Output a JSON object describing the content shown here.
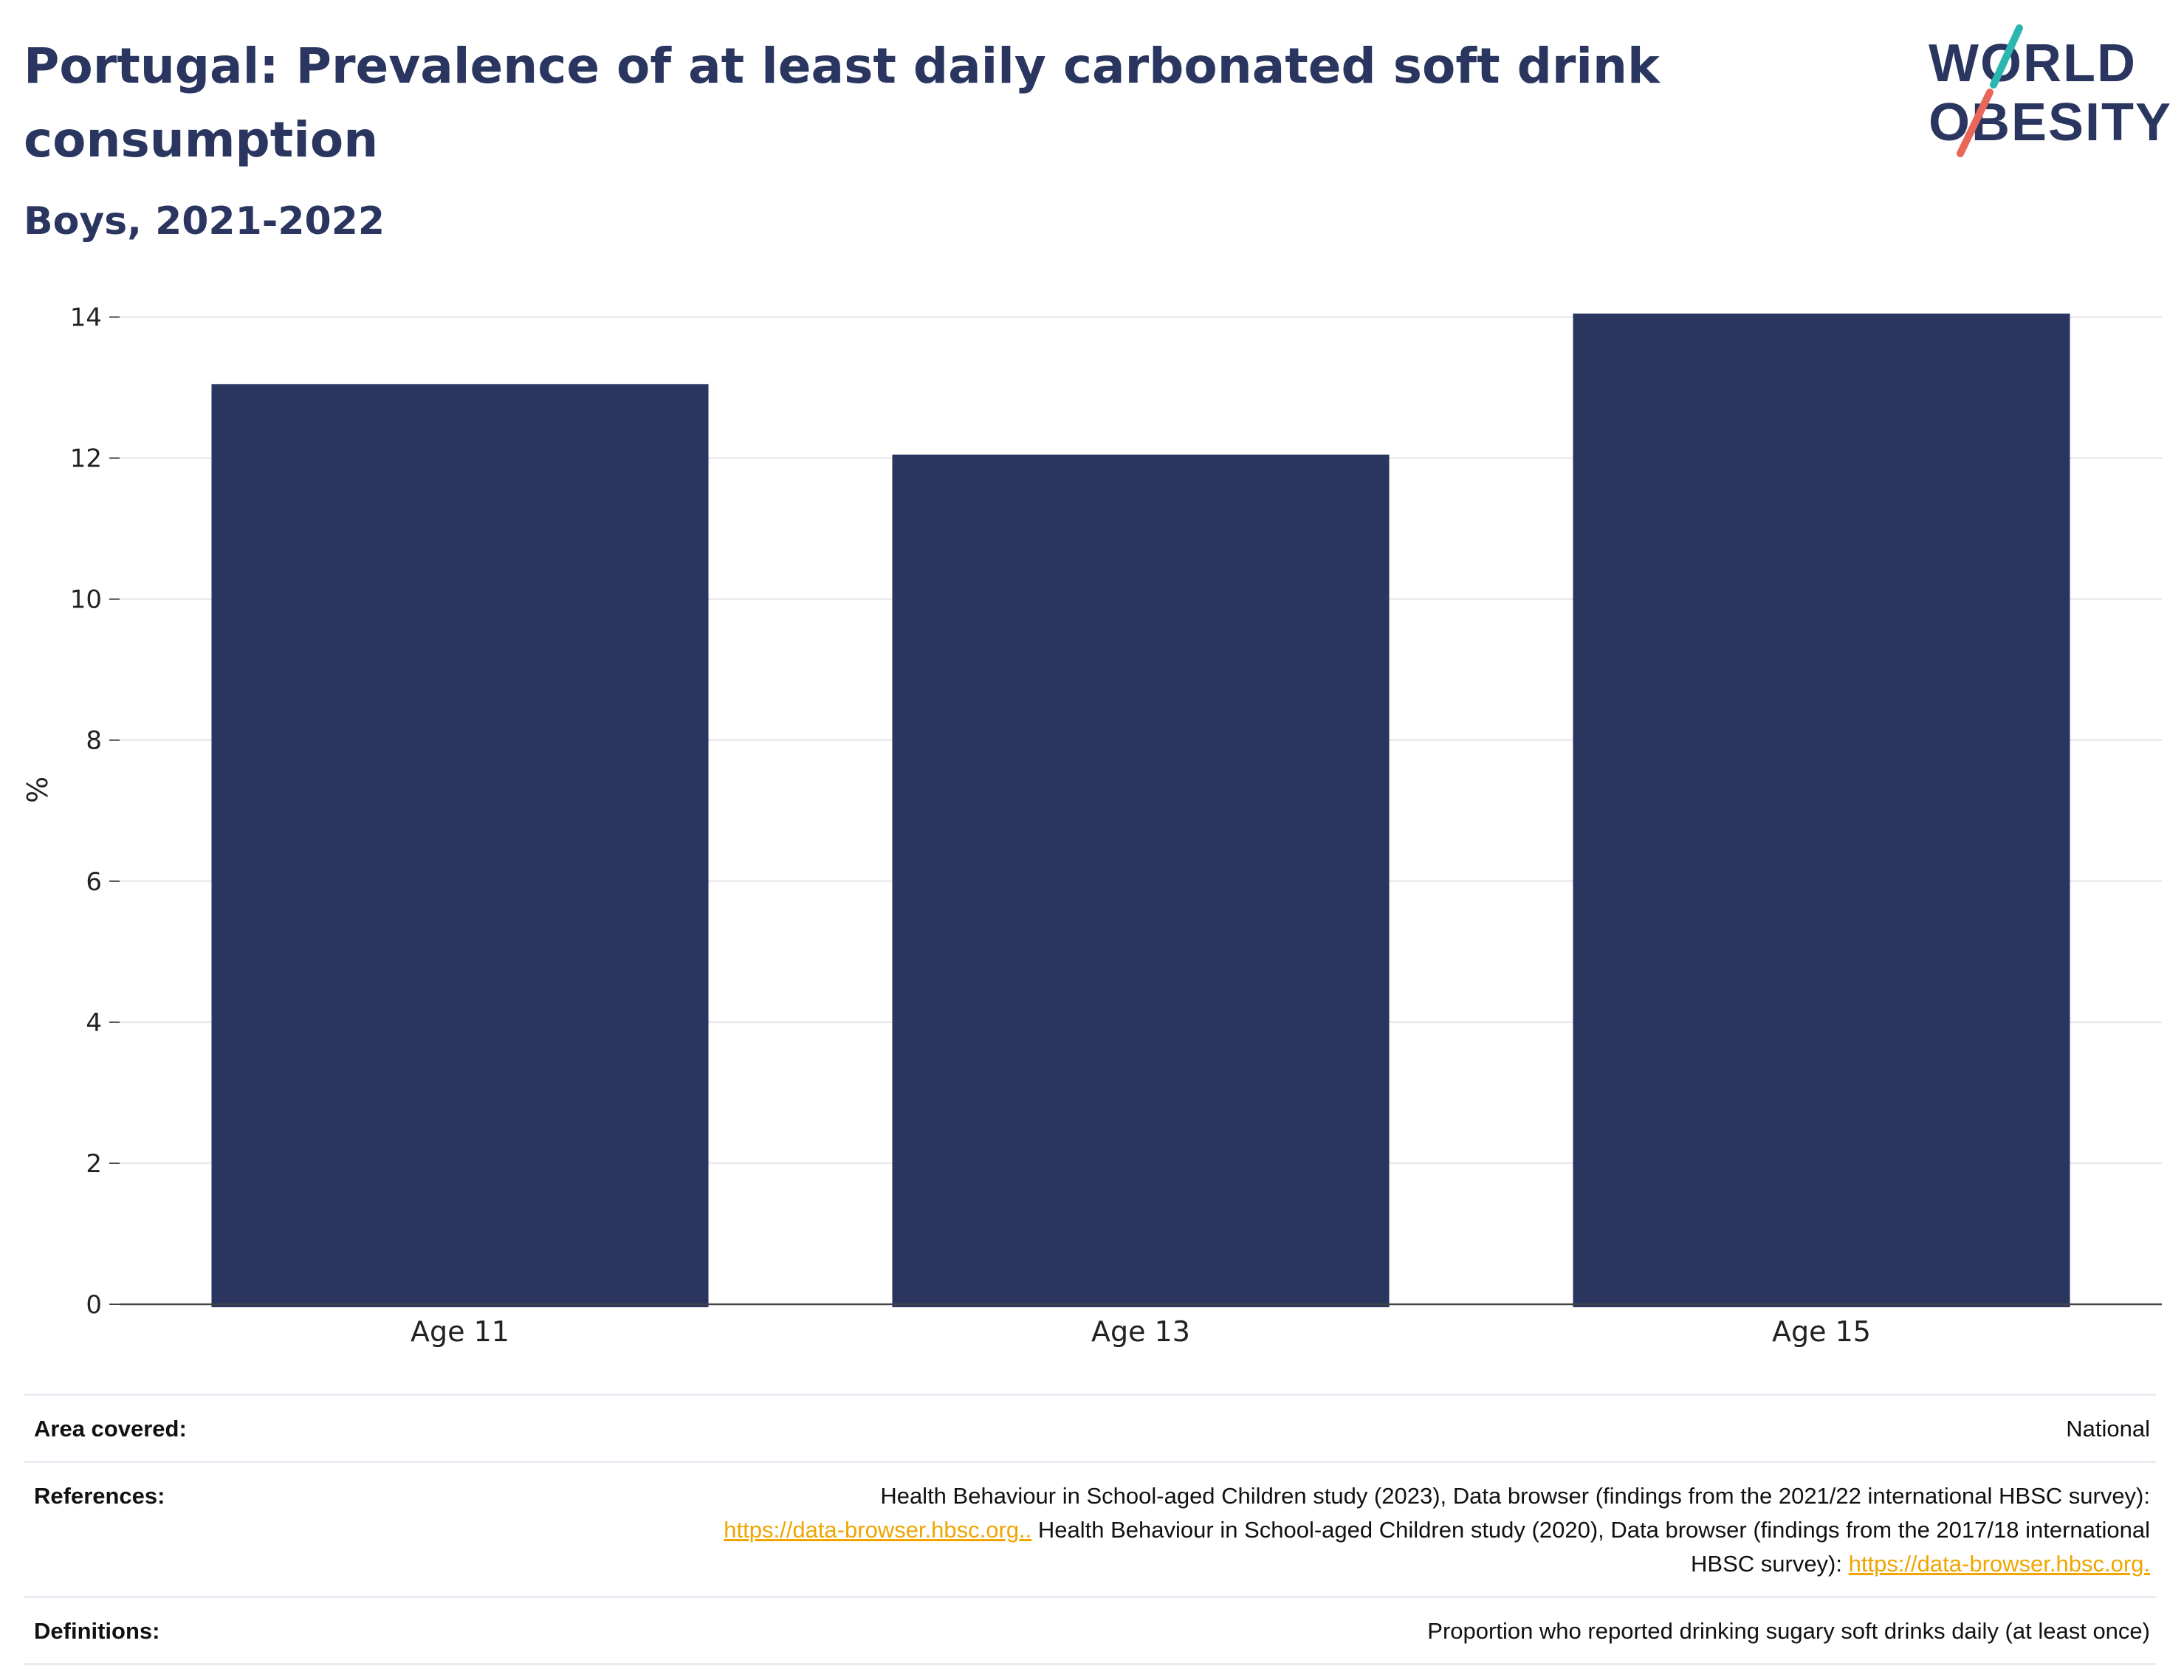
{
  "header": {
    "title": "Portugal: Prevalence of at least daily carbonated soft drink consumption",
    "subtitle": "Boys, 2021-2022",
    "logo_line1": "WORLD",
    "logo_line2": "OBESITY"
  },
  "colors": {
    "bar": "#2a365f",
    "title": "#2a365f",
    "link": "#f0a500",
    "logo_teal": "#2bb6b0",
    "logo_coral": "#e8665a"
  },
  "chart_data": {
    "type": "bar",
    "categories": [
      "Age 11",
      "Age 13",
      "Age 15"
    ],
    "values": [
      13.05,
      12.05,
      14.05
    ],
    "title": "",
    "xlabel": "",
    "ylabel": "%",
    "ylim": [
      0,
      14.1
    ],
    "yticks": [
      0,
      2,
      4,
      6,
      8,
      10,
      12,
      14
    ],
    "grid": true
  },
  "info": {
    "area_label": "Area covered:",
    "area_value": "National",
    "references_label": "References:",
    "references_text1": "Health Behaviour in School-aged Children study (2023), Data browser (findings from the 2021/22 international HBSC survey):",
    "references_link1": "https://data-browser.hbsc.org..",
    "references_text2": " Health Behaviour in School-aged Children study (2020), Data browser (findings from the 2017/18 international HBSC survey): ",
    "references_link2": "https://data-browser.hbsc.org.",
    "definitions_label": "Definitions:",
    "definitions_value": "Proportion who reported drinking sugary soft drinks daily (at least once)"
  }
}
